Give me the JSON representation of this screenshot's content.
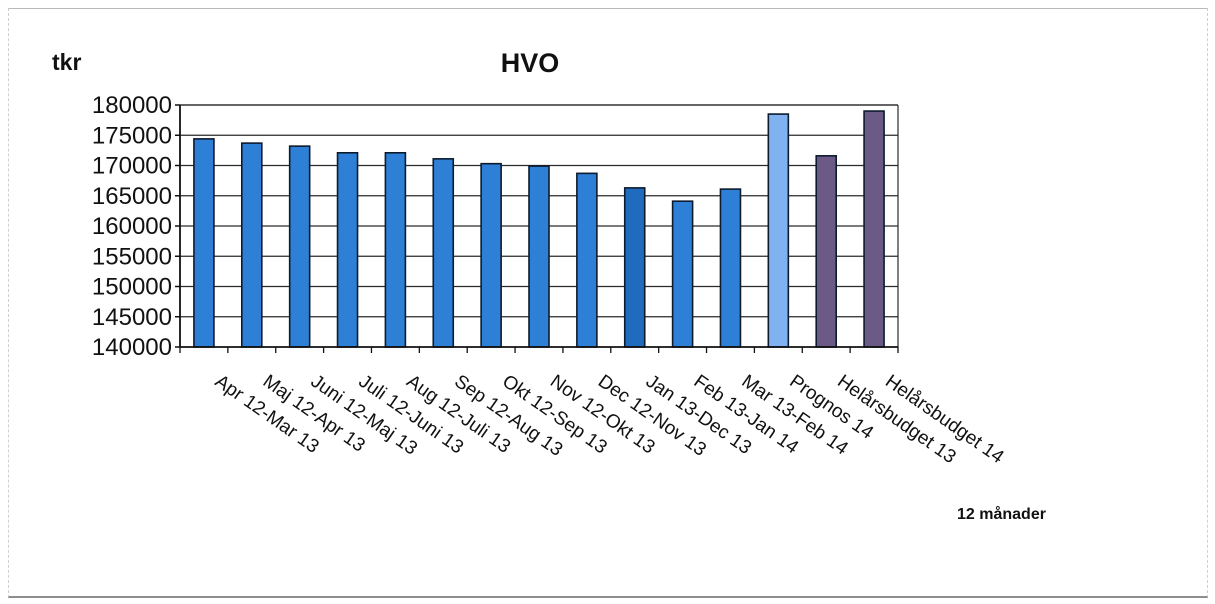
{
  "chart_data": {
    "type": "bar",
    "title": "HVO",
    "ylabel": "tkr",
    "xlabel": "12 månader",
    "ylim": [
      140000,
      180000
    ],
    "yticks": [
      140000,
      145000,
      150000,
      155000,
      160000,
      165000,
      170000,
      175000,
      180000
    ],
    "grid": true,
    "legend": "none",
    "categories": [
      "Apr 12-Mar 13",
      "Maj 12-Apr 13",
      "Juni 12-Maj 13",
      "Juli 12-Juni 13",
      "Aug 12-Juli 13",
      "Sep 12-Aug 13",
      "Okt 12-Sep 13",
      "Nov 12-Okt 13",
      "Dec 12-Nov 13",
      "Jan 13-Dec 13",
      "Feb 13-Jan 14",
      "Mar 13-Feb 14",
      "Prognos 14",
      "Helårsbudget 13",
      "Helårsbudget 14"
    ],
    "values": [
      174400,
      173700,
      173200,
      172100,
      172100,
      171100,
      170300,
      169900,
      168700,
      166300,
      164100,
      166100,
      178500,
      171600,
      179000
    ],
    "bar_colors": [
      "#2e7fd6",
      "#2e7fd6",
      "#2e7fd6",
      "#2e7fd6",
      "#2e7fd6",
      "#2e7fd6",
      "#2e7fd6",
      "#2e7fd6",
      "#2e7fd6",
      "#1f6bbd",
      "#2e7fd6",
      "#2e7fd6",
      "#7fb2ee",
      "#6c5a86",
      "#6c5a86"
    ],
    "edge_color": "#0d1b2e"
  }
}
